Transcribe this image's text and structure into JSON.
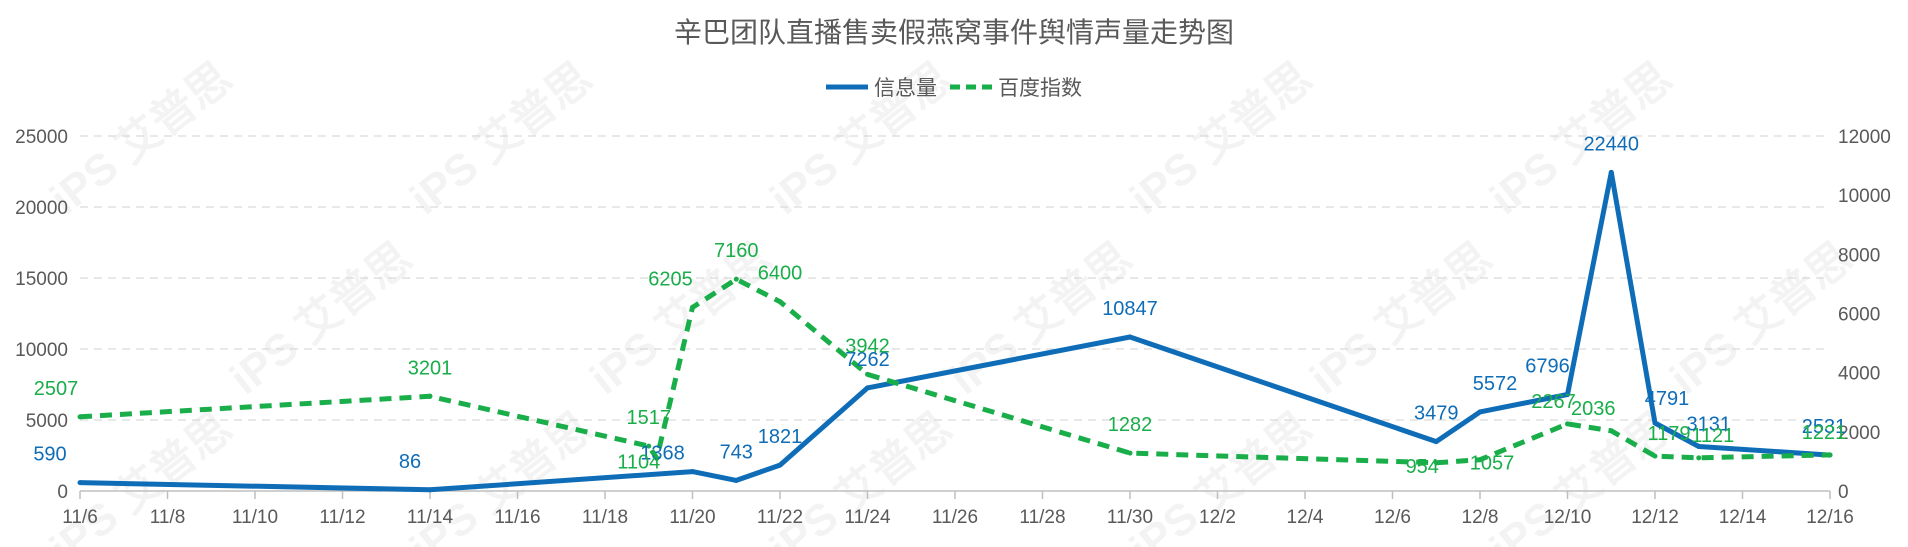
{
  "chart_data": {
    "type": "line",
    "title": "辛巴团队直播售卖假燕窝事件舆情声量走势图",
    "watermark": "iPS 艾普思",
    "legend_position": "top-center",
    "grid": "horizontal-dashed",
    "x_tick_labels": [
      "11/6",
      "11/8",
      "11/10",
      "11/12",
      "11/14",
      "11/16",
      "11/18",
      "11/20",
      "11/22",
      "11/24",
      "11/26",
      "11/28",
      "11/30",
      "12/2",
      "12/4",
      "12/6",
      "12/8",
      "12/10",
      "12/12",
      "12/14",
      "12/16"
    ],
    "y_left": {
      "ylim": [
        0,
        25000
      ],
      "ticks": [
        0,
        5000,
        10000,
        15000,
        20000,
        25000
      ]
    },
    "y_right": {
      "ylim": [
        0,
        12000
      ],
      "ticks": [
        0,
        2000,
        4000,
        6000,
        8000,
        10000,
        12000
      ]
    },
    "series": [
      {
        "name": "信息量",
        "axis": "left",
        "color": "#0F6DB8",
        "line_style": "solid",
        "points": [
          {
            "x": "11/6",
            "y": 590
          },
          {
            "x": "11/14",
            "y": 86
          },
          {
            "x": "11/20",
            "y": 1368
          },
          {
            "x": "11/21",
            "y": 743
          },
          {
            "x": "11/22",
            "y": 1821
          },
          {
            "x": "11/24",
            "y": 7262
          },
          {
            "x": "11/30",
            "y": 10847
          },
          {
            "x": "12/7",
            "y": 3479
          },
          {
            "x": "12/8",
            "y": 5572
          },
          {
            "x": "12/10",
            "y": 6796
          },
          {
            "x": "12/11",
            "y": 22440
          },
          {
            "x": "12/12",
            "y": 4791
          },
          {
            "x": "12/13",
            "y": 3131
          },
          {
            "x": "12/16",
            "y": 2531
          }
        ]
      },
      {
        "name": "百度指数",
        "axis": "right",
        "color": "#1AAE4A",
        "line_style": "dashed",
        "points": [
          {
            "x": "11/6",
            "y": 2507
          },
          {
            "x": "11/14",
            "y": 3201
          },
          {
            "x": "11/19",
            "y": 1517
          },
          {
            "x": "11/19",
            "y": 1104
          },
          {
            "x": "11/20",
            "y": 6205
          },
          {
            "x": "11/21",
            "y": 7160
          },
          {
            "x": "11/22",
            "y": 6400
          },
          {
            "x": "11/24",
            "y": 3942
          },
          {
            "x": "11/30",
            "y": 1282
          },
          {
            "x": "12/7",
            "y": 954
          },
          {
            "x": "12/8",
            "y": 1057
          },
          {
            "x": "12/10",
            "y": 2267
          },
          {
            "x": "12/11",
            "y": 2036
          },
          {
            "x": "12/12",
            "y": 1179
          },
          {
            "x": "12/13",
            "y": 1121
          },
          {
            "x": "12/16",
            "y": 1221
          }
        ]
      }
    ]
  }
}
